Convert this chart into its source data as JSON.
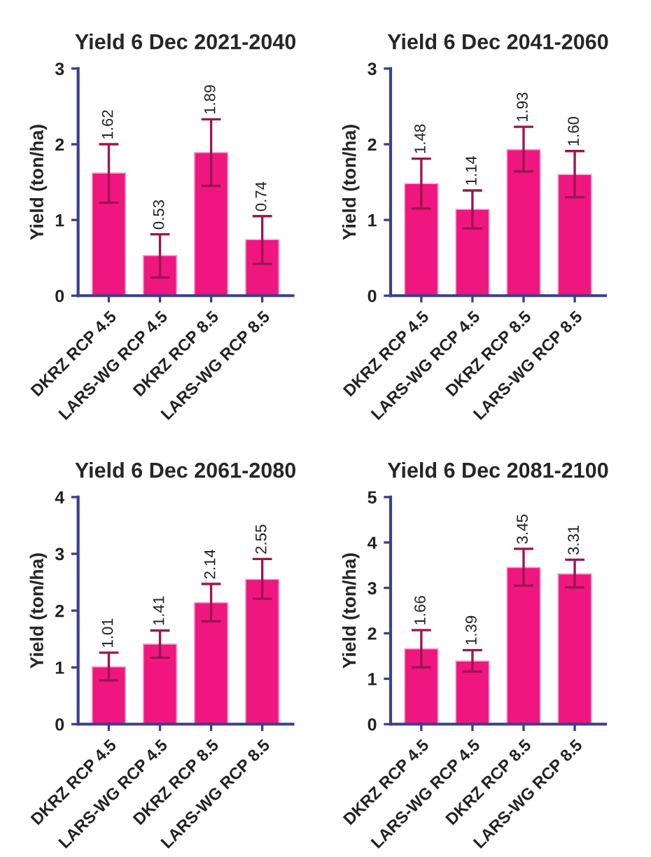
{
  "chart_data": [
    {
      "type": "bar",
      "title": "Yield 6 Dec 2021-2040",
      "ylabel": "Yield (ton/ha)",
      "categories": [
        "DKRZ RCP 4.5",
        "LARS-WG RCP 4.5",
        "DKRZ RCP 8.5",
        "LARS-WG RCP 8.5"
      ],
      "values": [
        1.62,
        0.53,
        1.89,
        0.74
      ],
      "value_labels": [
        "1.62",
        "0.53",
        "1.89",
        "0.74"
      ],
      "errors": [
        [
          1.23,
          2.0
        ],
        [
          0.24,
          0.81
        ],
        [
          1.45,
          2.33
        ],
        [
          0.42,
          1.05
        ]
      ],
      "color": "#f0167f",
      "ylim": [
        0,
        3
      ],
      "yticks": [
        0,
        1,
        2,
        3
      ],
      "grid": false,
      "legend": false
    },
    {
      "type": "bar",
      "title": "Yield 6 Dec 2041-2060",
      "ylabel": "Yield (ton/ha)",
      "categories": [
        "DKRZ RCP 4.5",
        "LARS-WG RCP 4.5",
        "DKRZ RCP 8.5",
        "LARS-WG RCP 8.5"
      ],
      "values": [
        1.48,
        1.14,
        1.93,
        1.6
      ],
      "value_labels": [
        "1.48",
        "1.14",
        "1.93",
        "1.60"
      ],
      "errors": [
        [
          1.15,
          1.81
        ],
        [
          0.89,
          1.39
        ],
        [
          1.64,
          2.23
        ],
        [
          1.3,
          1.91
        ]
      ],
      "color": "#f0167f",
      "ylim": [
        0,
        3
      ],
      "yticks": [
        0,
        1,
        2,
        3
      ],
      "grid": false,
      "legend": false
    },
    {
      "type": "bar",
      "title": "Yield 6 Dec 2061-2080",
      "ylabel": "Yield (ton/ha)",
      "categories": [
        "DKRZ RCP 4.5",
        "LARS-WG RCP 4.5",
        "DKRZ RCP 8.5",
        "LARS-WG RCP 8.5"
      ],
      "values": [
        1.01,
        1.41,
        2.14,
        2.55
      ],
      "value_labels": [
        "1.01",
        "1.41",
        "2.14",
        "2.55"
      ],
      "errors": [
        [
          0.77,
          1.26
        ],
        [
          1.17,
          1.65
        ],
        [
          1.81,
          2.47
        ],
        [
          2.21,
          2.91
        ]
      ],
      "color": "#f0167f",
      "ylim": [
        0,
        4
      ],
      "yticks": [
        0,
        1,
        2,
        3,
        4
      ],
      "grid": false,
      "legend": false
    },
    {
      "type": "bar",
      "title": "Yield 6 Dec 2081-2100",
      "ylabel": "Yield (ton/ha)",
      "categories": [
        "DKRZ RCP 4.5",
        "LARS-WG RCP 4.5",
        "DKRZ RCP 8.5",
        "LARS-WG RCP 8.5"
      ],
      "values": [
        1.66,
        1.39,
        3.45,
        3.31
      ],
      "value_labels": [
        "1.66",
        "1.39",
        "3.45",
        "3.31"
      ],
      "errors": [
        [
          1.25,
          2.07
        ],
        [
          1.16,
          1.63
        ],
        [
          3.05,
          3.86
        ],
        [
          3.01,
          3.62
        ]
      ],
      "color": "#f0167f",
      "ylim": [
        0,
        5
      ],
      "yticks": [
        0,
        1,
        2,
        3,
        4,
        5
      ],
      "grid": false,
      "legend": false
    }
  ]
}
